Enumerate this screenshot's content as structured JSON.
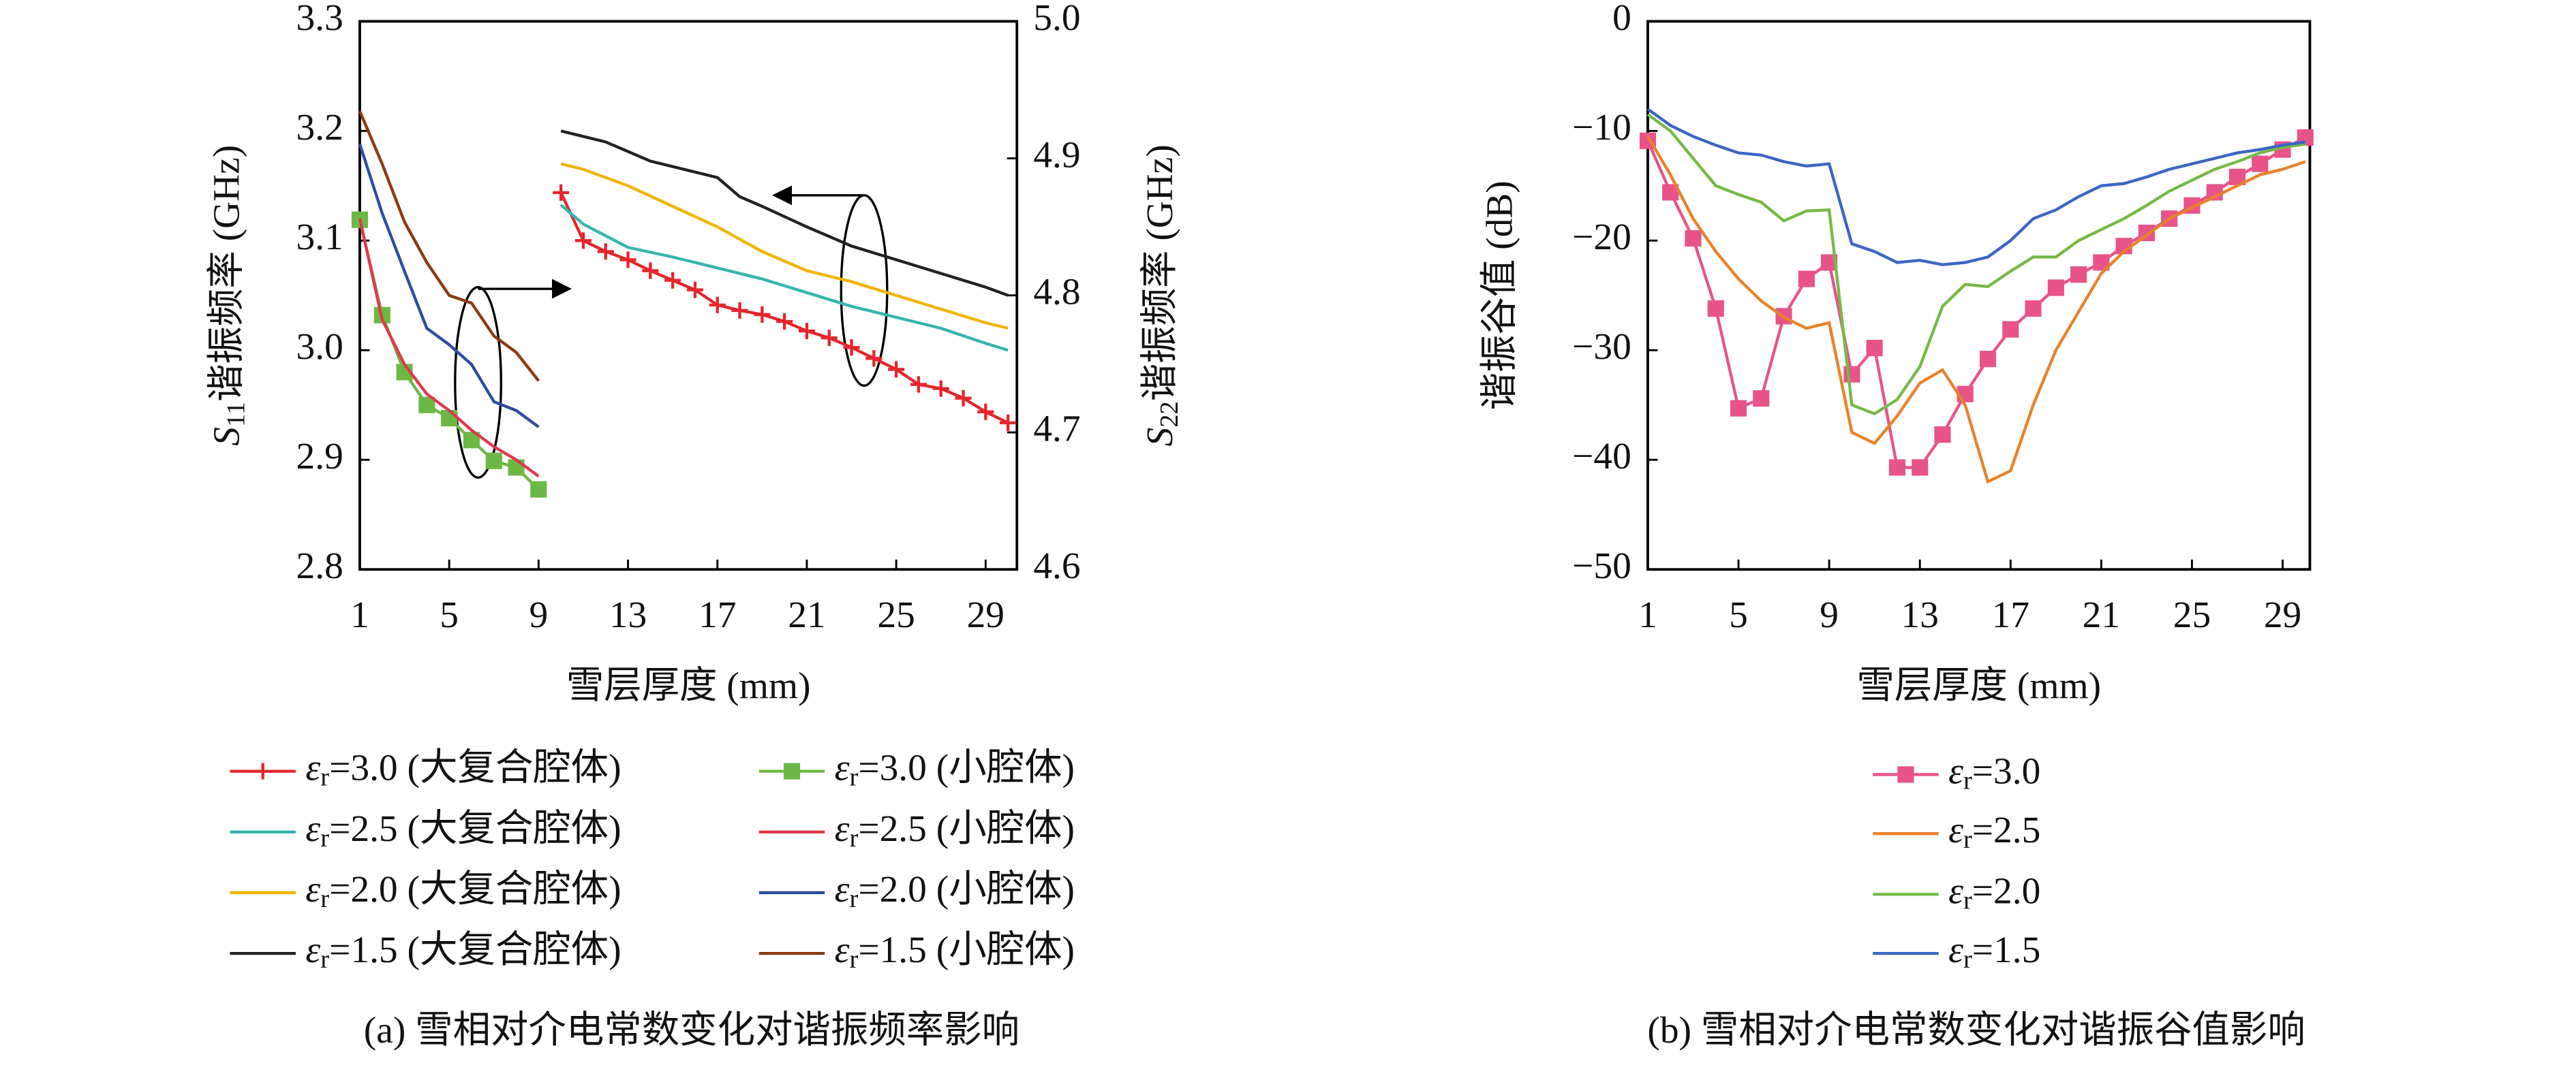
{
  "chart_data": [
    {
      "type": "line",
      "caption": "(a) 雪相对介电常数变化对谐振频率影响",
      "xlabel": "雪层厚度 (mm)",
      "ylabel": "S11谐振频率 (GHz)",
      "y2label": "S22谐振频率 (GHz)",
      "xlim": [
        1,
        30.4
      ],
      "xticks": [
        1,
        5,
        9,
        13,
        17,
        21,
        25,
        29
      ],
      "ylim": [
        2.8,
        3.3
      ],
      "yticks": [
        2.8,
        2.9,
        {
          "value": 3,
          "label": "3.0"
        },
        3.1,
        3.2,
        3.3
      ],
      "y2lim": [
        4.6,
        5.0
      ],
      "y2ticks": [
        4.6,
        4.7,
        4.8,
        4.9,
        {
          "value": 5,
          "label": "5.0"
        }
      ],
      "series": [
        {
          "name": "εr=3.0 (大复合腔体)",
          "color": "#e5262b",
          "marker": "plus",
          "axis": "y2",
          "x": [
            10,
            11,
            12,
            13,
            14,
            15,
            16,
            17,
            18,
            19,
            20,
            21,
            22,
            23,
            24,
            25,
            26,
            27,
            28,
            29,
            30
          ],
          "values": [
            4.875,
            4.84,
            4.832,
            4.826,
            4.818,
            4.811,
            4.804,
            4.793,
            4.789,
            4.786,
            4.781,
            4.774,
            4.769,
            4.762,
            4.754,
            4.746,
            4.735,
            4.732,
            4.725,
            4.715,
            4.707
          ]
        },
        {
          "name": "εr=3.0 (小腔体)",
          "color": "#6cb844",
          "marker": "square",
          "x": [
            1,
            2,
            3,
            4,
            5,
            6,
            7,
            8,
            9
          ],
          "values": [
            3.119,
            3.032,
            2.98,
            2.95,
            2.938,
            2.918,
            2.899,
            2.893,
            2.873
          ]
        },
        {
          "name": "εr=2.5 (大复合腔体)",
          "color": "#35b5ad",
          "axis": "y2",
          "x": [
            10,
            11,
            13,
            15,
            17,
            19,
            21,
            23,
            25,
            27,
            29,
            30
          ],
          "values": [
            4.866,
            4.852,
            4.835,
            4.828,
            4.82,
            4.812,
            4.802,
            4.792,
            4.784,
            4.776,
            4.765,
            4.76
          ]
        },
        {
          "name": "εr=2.5 (小腔体)",
          "color": "#e0384c",
          "x": [
            1,
            2,
            3,
            4,
            5,
            6,
            7,
            8,
            9
          ],
          "values": [
            3.12,
            3.028,
            2.987,
            2.96,
            2.945,
            2.927,
            2.912,
            2.9,
            2.885
          ]
        },
        {
          "name": "εr=2.0 (大复合腔体)",
          "color": "#f0b400",
          "axis": "y2",
          "x": [
            10,
            11,
            13,
            15,
            17,
            19,
            21,
            23,
            25,
            27,
            29,
            30
          ],
          "values": [
            4.896,
            4.892,
            4.88,
            4.865,
            4.85,
            4.832,
            4.818,
            4.81,
            4.8,
            4.79,
            4.78,
            4.776
          ]
        },
        {
          "name": "εr=2.0 (小腔体)",
          "color": "#2c4ea0",
          "x": [
            1,
            2,
            3,
            4,
            5,
            6,
            7,
            8,
            9
          ],
          "values": [
            3.188,
            3.125,
            3.072,
            3.02,
            3.005,
            2.987,
            2.953,
            2.945,
            2.93
          ]
        },
        {
          "name": "εr=1.5 (大复合腔体)",
          "color": "#222222",
          "axis": "y2",
          "x": [
            10,
            11,
            12,
            13,
            14,
            15,
            16,
            17,
            18,
            19,
            21,
            23,
            25,
            27,
            29,
            30
          ],
          "values": [
            4.92,
            4.916,
            4.912,
            4.905,
            4.898,
            4.894,
            4.89,
            4.886,
            4.872,
            4.865,
            4.85,
            4.836,
            4.826,
            4.816,
            4.806,
            4.8
          ]
        },
        {
          "name": "εr=1.5 (小腔体)",
          "color": "#8a3a12",
          "x": [
            1,
            2,
            3,
            4,
            5,
            6,
            7,
            8,
            9
          ],
          "values": [
            3.218,
            3.17,
            3.117,
            3.08,
            3.05,
            3.043,
            3.013,
            2.998,
            2.972
          ]
        }
      ]
    },
    {
      "type": "line",
      "caption": "(b) 雪相对介电常数变化对谐振谷值影响",
      "xlabel": "雪层厚度 (mm)",
      "ylabel": "谐振谷值 (dB)",
      "xlim": [
        1,
        30.2
      ],
      "xticks": [
        1,
        5,
        9,
        13,
        17,
        21,
        25,
        29
      ],
      "ylim": [
        -50,
        0
      ],
      "yticks": [
        0,
        {
          "value": -10,
          "label": "−10"
        },
        {
          "value": -20,
          "label": "−20"
        },
        {
          "value": -30,
          "label": "−30"
        },
        {
          "value": -40,
          "label": "−40"
        },
        {
          "value": -50,
          "label": "−50"
        }
      ],
      "series": [
        {
          "name": "εr=3.0",
          "color": "#e8538a",
          "marker": "square",
          "x": [
            1,
            2,
            3,
            4,
            5,
            6,
            7,
            8,
            9,
            10,
            11,
            12,
            13,
            14,
            15,
            16,
            17,
            18,
            19,
            20,
            21,
            22,
            23,
            24,
            25,
            26,
            27,
            28,
            29,
            30
          ],
          "values": [
            -10.9,
            -15.6,
            -19.8,
            -26.2,
            -35.3,
            -34.4,
            -26.9,
            -23.5,
            -22.0,
            -32.2,
            -29.8,
            -40.7,
            -40.7,
            -37.7,
            -34.0,
            -30.8,
            -28.1,
            -26.2,
            -24.3,
            -23.1,
            -22.0,
            -20.5,
            -19.3,
            -18.0,
            -16.8,
            -15.6,
            -14.2,
            -13.0,
            -11.7,
            -10.6
          ]
        },
        {
          "name": "εr=2.5",
          "color": "#e8822a",
          "x": [
            1,
            2,
            3,
            4,
            5,
            6,
            7,
            8,
            9,
            10,
            11,
            12,
            13,
            14,
            15,
            16,
            17,
            18,
            19,
            20,
            21,
            22,
            23,
            24,
            25,
            26,
            27,
            28,
            29,
            30
          ],
          "values": [
            -10.5,
            -14,
            -18,
            -21,
            -23.5,
            -25.5,
            -27,
            -28,
            -27.5,
            -37.5,
            -38.5,
            -36,
            -33,
            -31.8,
            -35,
            -42,
            -41,
            -35,
            -30,
            -26.5,
            -23,
            -21,
            -19.5,
            -18,
            -17,
            -16,
            -15,
            -14,
            -13.5,
            -12.8
          ]
        },
        {
          "name": "εr=2.0",
          "color": "#76b947",
          "x": [
            1,
            2,
            3,
            4,
            5,
            6,
            7,
            8,
            9,
            10,
            11,
            12,
            13,
            14,
            15,
            16,
            17,
            18,
            19,
            20,
            21,
            22,
            23,
            24,
            25,
            26,
            27,
            28,
            29,
            30
          ],
          "values": [
            -8.5,
            -10,
            -12.5,
            -15,
            -15.8,
            -16.5,
            -18.2,
            -17.3,
            -17.2,
            -35,
            -35.8,
            -34.5,
            -31.5,
            -26,
            -24,
            -24.2,
            -22.8,
            -21.5,
            -21.5,
            -20,
            -19,
            -18,
            -16.8,
            -15.5,
            -14.5,
            -13.5,
            -12.8,
            -12,
            -11.5,
            -11.2
          ]
        },
        {
          "name": "εr=1.5",
          "color": "#3a66c4",
          "x": [
            1,
            2,
            3,
            4,
            5,
            6,
            7,
            8,
            9,
            10,
            11,
            12,
            13,
            14,
            15,
            16,
            17,
            18,
            19,
            20,
            21,
            22,
            23,
            24,
            25,
            26,
            27,
            28,
            29,
            30
          ],
          "values": [
            -8,
            -9.5,
            -10.5,
            -11.3,
            -12,
            -12.2,
            -12.8,
            -13.2,
            -13,
            -20.3,
            -21,
            -22,
            -21.8,
            -22.2,
            -22,
            -21.5,
            -20,
            -18,
            -17.2,
            -16,
            -15,
            -14.8,
            -14.2,
            -13.5,
            -13,
            -12.5,
            -12,
            -11.7,
            -11.3,
            -11
          ]
        }
      ]
    }
  ]
}
